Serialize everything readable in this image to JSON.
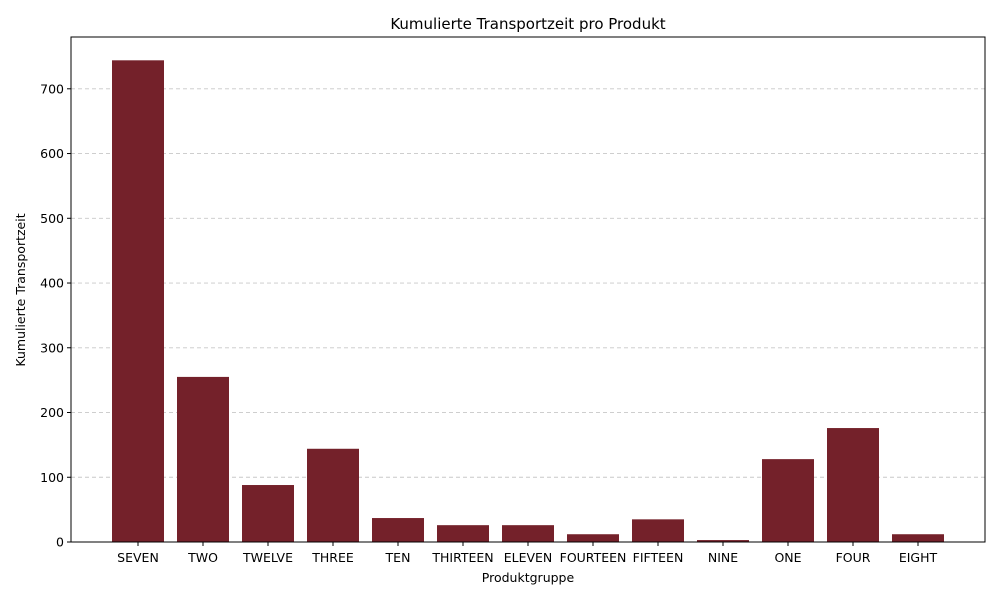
{
  "chart_data": {
    "type": "bar",
    "title": "Kumulierte Transportzeit pro Produkt",
    "xlabel": "Produktgruppe",
    "ylabel": "Kumulierte Transportzeit",
    "categories": [
      "SEVEN",
      "TWO",
      "TWELVE",
      "THREE",
      "TEN",
      "THIRTEEN",
      "ELEVEN",
      "FOURTEEN",
      "FIFTEEN",
      "NINE",
      "ONE",
      "FOUR",
      "EIGHT"
    ],
    "values": [
      744,
      255,
      88,
      144,
      37,
      26,
      26,
      12,
      35,
      3,
      128,
      176,
      12
    ],
    "ylim": [
      0,
      780
    ],
    "yticks": [
      0,
      100,
      200,
      300,
      400,
      500,
      600,
      700
    ],
    "grid": "y-dashed",
    "bar_color": "#74212a",
    "grid_color": "#c8c8c8"
  }
}
